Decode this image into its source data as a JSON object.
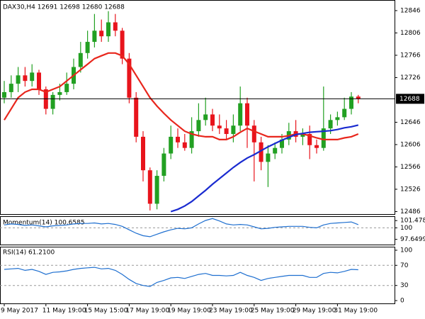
{
  "chart_data": [
    {
      "type": "candlestick",
      "title": "DAX30,H4 12691 12698 12680 12688",
      "categories": [
        "9 May 2017",
        null,
        null,
        null,
        null,
        null,
        "11 May 19:00",
        null,
        null,
        null,
        null,
        null,
        "15 May 15:00",
        null,
        null,
        null,
        null,
        null,
        "17 May 19:00",
        null,
        null,
        null,
        null,
        null,
        "19 May 19:00",
        null,
        null,
        null,
        null,
        null,
        "23 May 19:00",
        null,
        null,
        null,
        null,
        null,
        "25 May 19:00",
        null,
        null,
        null,
        null,
        null,
        "29 May 19:00",
        null,
        null,
        null,
        null,
        null,
        "31 May 19:00",
        null,
        null,
        null
      ],
      "open": [
        12690,
        12700,
        12715,
        12730,
        12720,
        12735,
        12705,
        12670,
        12695,
        12700,
        12715,
        12745,
        12770,
        12790,
        12810,
        12800,
        12825,
        12810,
        12760,
        12690,
        12620,
        12560,
        12500,
        12550,
        12590,
        12620,
        12610,
        12600,
        12630,
        12650,
        12660,
        12640,
        12635,
        12625,
        12640,
        12680,
        12640,
        12610,
        12575,
        12590,
        12600,
        12615,
        12630,
        12620,
        12625,
        12605,
        12600,
        12635,
        12650,
        12655,
        12670,
        12692
      ],
      "high": [
        12720,
        12730,
        12745,
        12745,
        12750,
        12740,
        12710,
        12700,
        12715,
        12735,
        12760,
        12790,
        12810,
        12840,
        12830,
        12845,
        12840,
        12815,
        12770,
        12700,
        12630,
        12565,
        12560,
        12600,
        12640,
        12635,
        12625,
        12655,
        12680,
        12690,
        12670,
        12660,
        12650,
        12660,
        12710,
        12690,
        12650,
        12620,
        12605,
        12610,
        12625,
        12645,
        12650,
        12635,
        12640,
        12615,
        12710,
        12660,
        12665,
        12690,
        12700,
        12695
      ],
      "low": [
        12680,
        12690,
        12700,
        12710,
        12710,
        12695,
        12660,
        12660,
        12685,
        12695,
        12705,
        12735,
        12760,
        12780,
        12790,
        12790,
        12800,
        12750,
        12680,
        12610,
        12540,
        12488,
        12490,
        12540,
        12580,
        12600,
        12595,
        12590,
        12620,
        12640,
        12630,
        12625,
        12615,
        12610,
        12630,
        12600,
        12540,
        12560,
        12530,
        12580,
        12590,
        12605,
        12610,
        12605,
        12580,
        12590,
        12595,
        12625,
        12640,
        12650,
        12660,
        12680
      ],
      "close": [
        12700,
        12715,
        12730,
        12720,
        12735,
        12705,
        12670,
        12695,
        12700,
        12715,
        12745,
        12770,
        12790,
        12810,
        12800,
        12825,
        12810,
        12760,
        12690,
        12620,
        12560,
        12500,
        12550,
        12590,
        12620,
        12610,
        12600,
        12630,
        12650,
        12660,
        12640,
        12635,
        12625,
        12640,
        12680,
        12640,
        12610,
        12575,
        12590,
        12600,
        12615,
        12630,
        12620,
        12625,
        12605,
        12600,
        12635,
        12650,
        12655,
        12670,
        12692,
        12688
      ],
      "up_color": "#22a022",
      "down_color": "#e8141c",
      "series": [
        {
          "color": "#e8261c",
          "values": [
            12650,
            12670,
            12690,
            12700,
            12705,
            12705,
            12700,
            12705,
            12710,
            12720,
            12730,
            12740,
            12750,
            12760,
            12765,
            12770,
            12770,
            12765,
            12750,
            12730,
            12710,
            12690,
            12675,
            12662,
            12650,
            12640,
            12630,
            12625,
            12622,
            12620,
            12620,
            12615,
            12615,
            12620,
            12628,
            12635,
            12630,
            12625,
            12620,
            12620,
            12620,
            12622,
            12625,
            12625,
            12622,
            12618,
            12615,
            12615,
            12615,
            12618,
            12620,
            12625
          ]
        },
        {
          "color": "#1a2bd0",
          "values": [
            null,
            null,
            null,
            null,
            null,
            null,
            null,
            null,
            null,
            null,
            null,
            null,
            null,
            null,
            null,
            null,
            null,
            null,
            null,
            null,
            null,
            null,
            null,
            null,
            12486,
            12490,
            12496,
            12504,
            12514,
            12524,
            12535,
            12545,
            12555,
            12565,
            12574,
            12582,
            12588,
            12595,
            12602,
            12608,
            12614,
            12619,
            12624,
            12626,
            12628,
            12629,
            12630,
            12631,
            12633,
            12636,
            12638,
            12641
          ]
        }
      ],
      "last_price": 12688,
      "ylim": [
        12481.5,
        12865
      ],
      "yticks": [
        12846,
        12806,
        12766,
        12726,
        12646,
        12606,
        12566,
        12526,
        12486
      ]
    },
    {
      "type": "line",
      "title": "Momentum(14) 100.6585",
      "color": "#1e6fd0",
      "values": [
        100.6,
        100.8,
        100.7,
        100.5,
        100.6,
        100.4,
        100.2,
        100.4,
        100.5,
        100.6,
        100.8,
        100.9,
        100.9,
        101.0,
        100.8,
        100.9,
        100.7,
        100.3,
        99.6,
        98.9,
        98.4,
        98.2,
        98.7,
        99.2,
        99.6,
        99.9,
        99.8,
        100.0,
        100.8,
        101.5,
        101.9,
        101.4,
        100.8,
        100.6,
        100.7,
        100.6,
        100.2,
        99.8,
        99.9,
        100.1,
        100.2,
        100.3,
        100.3,
        100.3,
        100.1,
        100.0,
        100.6,
        100.9,
        101.0,
        101.1,
        101.2,
        100.6585
      ],
      "ylim": [
        96.45,
        102.37
      ],
      "yticks": [
        101.4783,
        100,
        97.6499
      ],
      "level_lines": true
    },
    {
      "type": "line",
      "title": "RSI(14) 61.2100",
      "color": "#1e6fd0",
      "values": [
        62,
        63,
        64,
        60,
        62,
        58,
        52,
        56,
        57,
        59,
        62,
        64,
        65,
        66,
        63,
        64,
        60,
        52,
        42,
        34,
        30,
        28,
        36,
        40,
        45,
        46,
        44,
        48,
        52,
        54,
        50,
        50,
        49,
        50,
        56,
        50,
        46,
        40,
        44,
        46,
        48,
        50,
        50,
        50,
        46,
        46,
        54,
        56,
        55,
        58,
        62,
        61.21
      ],
      "ylim": [
        -5.6,
        107
      ],
      "yticks": [
        100,
        70,
        30,
        0
      ],
      "level_lines": true
    }
  ]
}
